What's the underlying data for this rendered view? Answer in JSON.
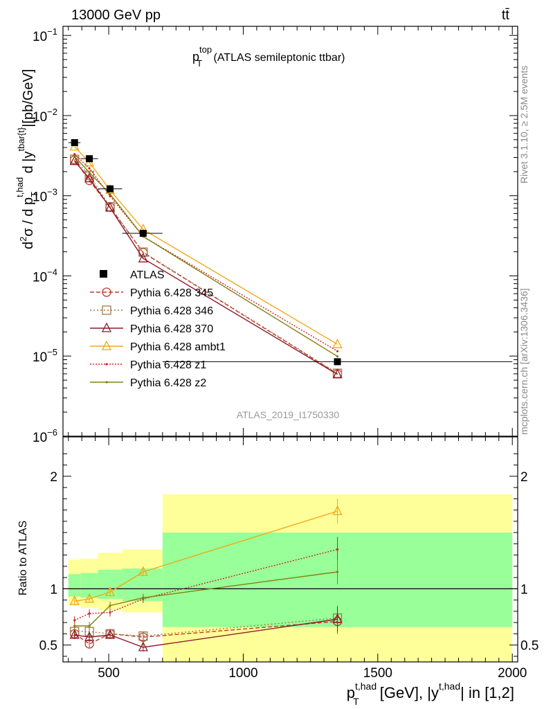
{
  "header": {
    "energy": "13000 GeV pp",
    "process": "tt̄"
  },
  "plot_title": {
    "main": "p",
    "sup": "top",
    "sub": "T",
    "rest": " (ATLAS semileptonic ttbar)"
  },
  "analysis_label": "ATLAS_2019_I1750330",
  "side_labels": {
    "rivet": "Rivet 3.1.10, ≥ 2.5M events",
    "mcplots": "mcplots.cern.ch [arXiv:1306.3436]"
  },
  "ylabel_main": {
    "d2": "d",
    "d2_sup": "2",
    "sigma_part": "σ / d p",
    "pt_sub": "T",
    "pt_sup": "t,had",
    "d_part": " d |y",
    "y_sup": "tbar{t}",
    "tail": "|[pb/GeV]"
  },
  "ylabel_ratio": "Ratio to ATLAS",
  "xlabel": {
    "p": "p",
    "p_sub": "T",
    "p_sup": "t,had",
    "mid": " [GeV], |y",
    "y_sup": "t,had",
    "tail": "| in [1,2]"
  },
  "chart_data": [
    {
      "type": "line",
      "panel": "main",
      "yscale": "log",
      "xlim": [
        330,
        2020
      ],
      "ylim": [
        1e-06,
        0.13
      ],
      "x_ticks": [
        500,
        1000,
        1500,
        2000
      ],
      "y_tick_labels": [
        {
          "value": 1e-06,
          "base": "10",
          "exp": "−6"
        },
        {
          "value": 1e-05,
          "base": "10",
          "exp": "−5"
        },
        {
          "value": 0.0001,
          "base": "10",
          "exp": "−4"
        },
        {
          "value": 0.001,
          "base": "10",
          "exp": "−3"
        },
        {
          "value": 0.01,
          "base": "10",
          "exp": "−2"
        },
        {
          "value": 0.1,
          "base": "10",
          "exp": "−1"
        }
      ],
      "data_points": {
        "name": "ATLAS",
        "x": [
          373,
          428,
          505,
          628,
          1350
        ],
        "xerr_edges": [
          [
            350,
            395
          ],
          [
            395,
            460
          ],
          [
            460,
            550
          ],
          [
            550,
            700
          ],
          [
            700,
            2000
          ]
        ],
        "y": [
          0.0046,
          0.0029,
          0.00122,
          0.00034,
          8.5e-06
        ]
      },
      "series": [
        {
          "name": "Pythia 6.428 345",
          "color": "#c0392b",
          "dash": "6,3",
          "marker": "circle",
          "x": [
            373,
            428,
            505,
            628,
            1350
          ],
          "y": [
            0.0028,
            0.00155,
            0.00072,
            0.000195,
            6e-06
          ]
        },
        {
          "name": "Pythia 6.428 346",
          "color": "#a07848",
          "dash": "2,3",
          "marker": "square",
          "x": [
            373,
            428,
            505,
            628,
            1350
          ],
          "y": [
            0.00285,
            0.0018,
            0.00073,
            0.000198,
            6.1e-06
          ]
        },
        {
          "name": "Pythia 6.428 370",
          "color": "#8b1a2a",
          "dash": "",
          "marker": "triangle",
          "x": [
            373,
            428,
            505,
            628,
            1350
          ],
          "y": [
            0.0027,
            0.00165,
            0.00071,
            0.000165,
            5.9e-06
          ]
        },
        {
          "name": "Pythia 6.428 ambt1",
          "color": "#f0a818",
          "dash": "",
          "marker": "triangle",
          "x": [
            373,
            428,
            505,
            628,
            1350
          ],
          "y": [
            0.0041,
            0.0026,
            0.00118,
            0.00038,
            1.4e-05
          ]
        },
        {
          "name": "Pythia 6.428 z1",
          "color": "#d42020",
          "dash": "2,2",
          "marker": "dot",
          "x": [
            373,
            428,
            505,
            628,
            1350
          ],
          "y": [
            0.0033,
            0.0022,
            0.00099,
            0.00031,
            1.15e-05
          ]
        },
        {
          "name": "Pythia 6.428 z2",
          "color": "#808010",
          "dash": "",
          "marker": "dot",
          "x": [
            373,
            428,
            505,
            628,
            1350
          ],
          "y": [
            0.0031,
            0.00195,
            0.00105,
            0.00031,
            9.9e-06
          ]
        }
      ]
    },
    {
      "type": "line",
      "panel": "ratio",
      "xlim": [
        330,
        2020
      ],
      "ylim": [
        0.35,
        2.35
      ],
      "y_ticks": [
        0.5,
        1,
        2
      ],
      "y_tick_labels": [
        "0.5",
        "1",
        "2"
      ],
      "x_tick_labels": [
        "500",
        "1000",
        "1500",
        "2000"
      ],
      "bands": [
        {
          "x0": 350,
          "x1": 395,
          "green": [
            0.93,
            1.13
          ],
          "yellow": [
            0.85,
            1.26
          ]
        },
        {
          "x0": 395,
          "x1": 460,
          "green": [
            0.92,
            1.14
          ],
          "yellow": [
            0.83,
            1.27
          ]
        },
        {
          "x0": 460,
          "x1": 550,
          "green": [
            0.91,
            1.17
          ],
          "yellow": [
            0.81,
            1.32
          ]
        },
        {
          "x0": 550,
          "x1": 700,
          "green": [
            0.89,
            1.18
          ],
          "yellow": [
            0.79,
            1.35
          ]
        },
        {
          "x0": 700,
          "x1": 2000,
          "green": [
            0.66,
            1.5
          ],
          "yellow": [
            0.35,
            1.84
          ]
        }
      ],
      "series": [
        {
          "name": "Pythia 6.428 345",
          "x": [
            373,
            428,
            505,
            628,
            1350
          ],
          "y": [
            0.6,
            0.51,
            0.6,
            0.57,
            0.71
          ]
        },
        {
          "name": "Pythia 6.428 346",
          "x": [
            373,
            428,
            505,
            628,
            1350
          ],
          "y": [
            0.62,
            0.62,
            0.6,
            0.58,
            0.74
          ]
        },
        {
          "name": "Pythia 6.428 370",
          "x": [
            373,
            428,
            505,
            628,
            1350
          ],
          "y": [
            0.59,
            0.57,
            0.59,
            0.48,
            0.73
          ]
        },
        {
          "name": "Pythia 6.428 ambt1",
          "x": [
            373,
            428,
            505,
            628,
            1350
          ],
          "y": [
            0.89,
            0.91,
            0.97,
            1.15,
            1.69
          ]
        },
        {
          "name": "Pythia 6.428 z1",
          "x": [
            373,
            428,
            505,
            628,
            1350
          ],
          "y": [
            0.72,
            0.78,
            0.79,
            0.91,
            1.35
          ]
        },
        {
          "name": "Pythia 6.428 z2",
          "x": [
            373,
            428,
            505,
            628,
            1350
          ],
          "y": [
            0.67,
            0.67,
            0.85,
            0.92,
            1.15
          ]
        }
      ]
    }
  ]
}
